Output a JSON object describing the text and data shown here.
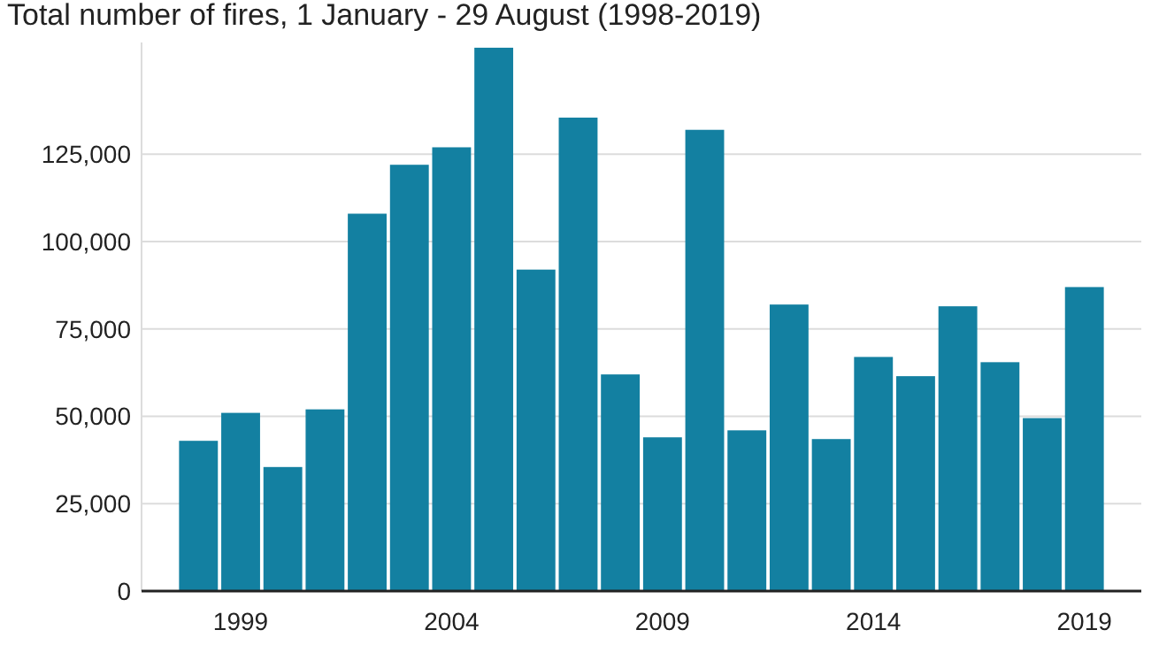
{
  "chart_data": {
    "type": "bar",
    "title": "Total number of fires, 1 January - 29 August (1998-2019)",
    "categories": [
      null,
      "1999",
      null,
      null,
      null,
      null,
      "2004",
      null,
      null,
      null,
      null,
      "2009",
      null,
      null,
      null,
      null,
      "2014",
      null,
      null,
      null,
      null,
      "2019"
    ],
    "values": [
      43000,
      51000,
      35500,
      52000,
      108000,
      122000,
      127000,
      155500,
      92000,
      135500,
      62000,
      44000,
      132000,
      46000,
      82000,
      43500,
      67000,
      61500,
      81500,
      65500,
      49500,
      87000
    ],
    "color": "#1380a1",
    "ylim": [
      0,
      157000
    ],
    "yticks": [
      0,
      {
        "value": 25000,
        "label": "25,000"
      },
      {
        "value": 50000,
        "label": "50,000"
      },
      {
        "value": 75000,
        "label": "75,000"
      },
      {
        "value": 100000,
        "label": "100,000"
      },
      {
        "value": 125000,
        "label": "125,000"
      }
    ],
    "grid": "y"
  }
}
